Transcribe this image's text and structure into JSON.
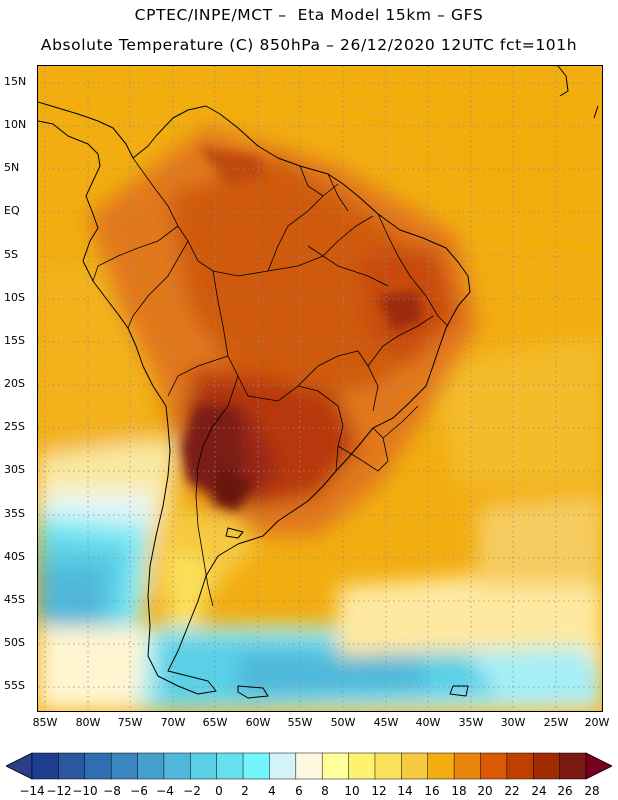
{
  "header": {
    "line1": "CPTEC/INPE/MCT –  Eta Model 15km – GFS",
    "line2": "Absolute Temperature (C) 850hPa – 26/12/2020 12UTC fct=101h"
  },
  "map": {
    "region": "South America",
    "lat_labels": [
      "15N",
      "10N",
      "5N",
      "EQ",
      "5S",
      "10S",
      "15S",
      "20S",
      "25S",
      "30S",
      "35S",
      "40S",
      "45S",
      "50S",
      "55S"
    ],
    "lon_labels": [
      "85W",
      "80W",
      "75W",
      "70W",
      "65W",
      "60W",
      "55W",
      "50W",
      "45W",
      "40W",
      "35W",
      "30W",
      "25W",
      "20W"
    ]
  },
  "colorbar": {
    "unit": "C",
    "ticks": [
      "−14",
      "−12",
      "−10",
      "−8",
      "−6",
      "−4",
      "−2",
      "0",
      "2",
      "4",
      "6",
      "8",
      "10",
      "12",
      "14",
      "16",
      "18",
      "20",
      "22",
      "24",
      "26",
      "28"
    ],
    "colors": [
      "#1f3d8f",
      "#2a57a0",
      "#2f6fb0",
      "#3b86bf",
      "#46a0cd",
      "#50b8da",
      "#5ad0e6",
      "#66e0ef",
      "#72f6fb",
      "#d2f4f8",
      "#fff8e0",
      "#ffff99",
      "#fff270",
      "#fbe05a",
      "#f6c93f",
      "#f2ad10",
      "#e8860e",
      "#da5a04",
      "#bf3f00",
      "#a02c00",
      "#7b1a14"
    ],
    "under_color": "#2a3e8c",
    "over_color": "#7a0020"
  }
}
